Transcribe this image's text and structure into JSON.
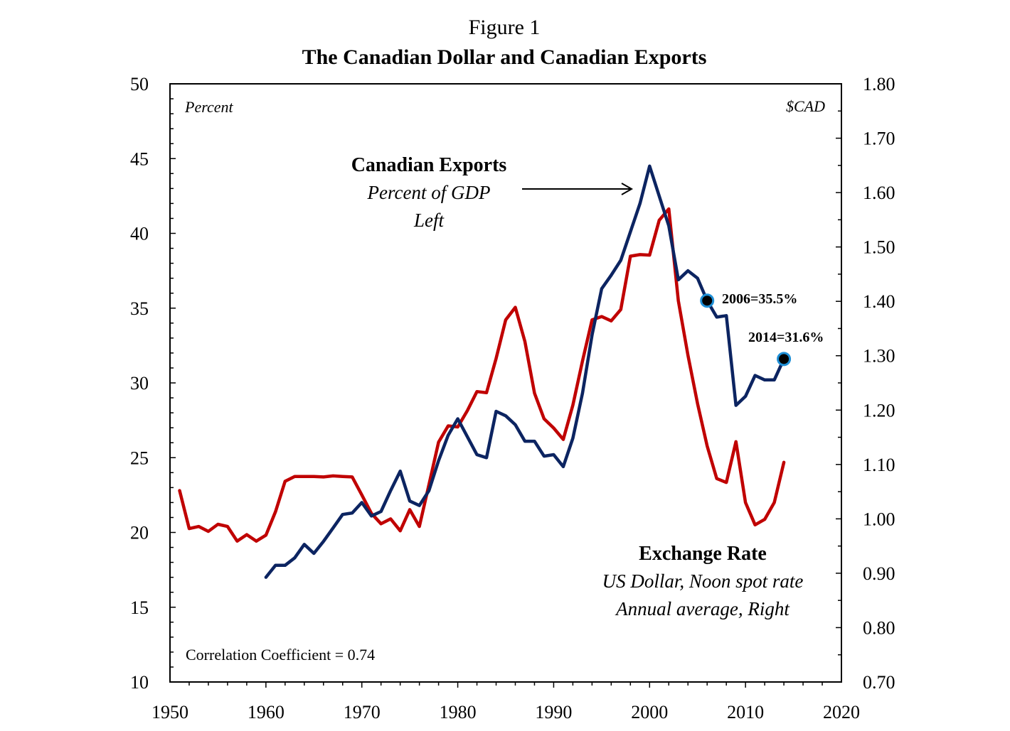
{
  "chart_data": {
    "type": "line",
    "figure_label": "Figure 1",
    "title": "The Canadian Dollar and Canadian Exports",
    "x_axis": {
      "range": [
        1950,
        2020
      ],
      "ticks": [
        1950,
        1960,
        1970,
        1980,
        1990,
        2000,
        2010,
        2020
      ],
      "tick_labels": [
        "1950",
        "1960",
        "1970",
        "1980",
        "1990",
        "2000",
        "2010",
        "2020"
      ]
    },
    "y_left": {
      "unit_label": "Percent",
      "range": [
        10,
        50
      ],
      "ticks": [
        10,
        15,
        20,
        25,
        30,
        35,
        40,
        45,
        50
      ],
      "tick_labels": [
        "10",
        "15",
        "20",
        "25",
        "30",
        "35",
        "40",
        "45",
        "50"
      ]
    },
    "y_right": {
      "unit_label": "$CAD",
      "range": [
        0.7,
        1.8
      ],
      "ticks": [
        0.7,
        0.8,
        0.9,
        1.0,
        1.1,
        1.2,
        1.3,
        1.4,
        1.5,
        1.6,
        1.7,
        1.8
      ],
      "tick_labels": [
        "0.70",
        "0.80",
        "0.90",
        "1.00",
        "1.10",
        "1.20",
        "1.30",
        "1.40",
        "1.50",
        "1.60",
        "1.70",
        "1.80"
      ]
    },
    "grid": false,
    "series": [
      {
        "name": "Canadian Exports",
        "axis": "left",
        "color": "#0c2461",
        "annotation": {
          "title": "Canadian Exports",
          "line1": "Percent of GDP",
          "line2": "Left"
        },
        "x": [
          1960,
          1961,
          1962,
          1963,
          1964,
          1965,
          1966,
          1967,
          1968,
          1969,
          1970,
          1971,
          1972,
          1973,
          1974,
          1975,
          1976,
          1977,
          1978,
          1979,
          1980,
          1981,
          1982,
          1983,
          1984,
          1985,
          1986,
          1987,
          1988,
          1989,
          1990,
          1991,
          1992,
          1993,
          1994,
          1995,
          1996,
          1997,
          1998,
          1999,
          2000,
          2001,
          2002,
          2003,
          2004,
          2005,
          2006,
          2007,
          2008,
          2009,
          2010,
          2011,
          2012,
          2013,
          2014
        ],
        "y": [
          17.0,
          17.8,
          17.8,
          18.3,
          19.2,
          18.6,
          19.4,
          20.3,
          21.2,
          21.3,
          22.0,
          21.1,
          21.4,
          22.8,
          24.1,
          22.1,
          21.8,
          22.8,
          24.8,
          26.5,
          27.6,
          26.4,
          25.2,
          25.0,
          28.1,
          27.8,
          27.2,
          26.1,
          26.1,
          25.1,
          25.2,
          24.4,
          26.3,
          29.3,
          33.2,
          36.3,
          37.2,
          38.2,
          40.1,
          42.0,
          44.5,
          42.5,
          40.5,
          36.9,
          37.5,
          37.0,
          35.5,
          34.4,
          34.5,
          28.5,
          29.1,
          30.5,
          30.2,
          30.2,
          31.6
        ]
      },
      {
        "name": "Exchange Rate",
        "axis": "right",
        "color": "#c00000",
        "annotation": {
          "title": "Exchange Rate",
          "line1": "US Dollar, Noon spot rate",
          "line2": "Annual average, Right"
        },
        "x": [
          1951,
          1952,
          1953,
          1954,
          1955,
          1956,
          1957,
          1958,
          1959,
          1960,
          1961,
          1962,
          1963,
          1964,
          1965,
          1966,
          1967,
          1968,
          1969,
          1970,
          1971,
          1972,
          1973,
          1974,
          1975,
          1976,
          1977,
          1978,
          1979,
          1980,
          1981,
          1982,
          1983,
          1984,
          1985,
          1986,
          1987,
          1988,
          1989,
          1990,
          1991,
          1992,
          1993,
          1994,
          1995,
          1996,
          1997,
          1998,
          1999,
          2000,
          2001,
          2002,
          2003,
          2004,
          2005,
          2006,
          2007,
          2008,
          2009,
          2010,
          2011,
          2012,
          2013,
          2014
        ],
        "y": [
          1.052,
          0.982,
          0.986,
          0.977,
          0.99,
          0.986,
          0.959,
          0.971,
          0.959,
          0.97,
          1.013,
          1.069,
          1.078,
          1.078,
          1.078,
          1.077,
          1.079,
          1.078,
          1.077,
          1.044,
          1.01,
          0.991,
          1.0,
          0.978,
          1.017,
          0.986,
          1.063,
          1.141,
          1.171,
          1.169,
          1.199,
          1.234,
          1.232,
          1.295,
          1.366,
          1.389,
          1.326,
          1.231,
          1.184,
          1.167,
          1.146,
          1.209,
          1.29,
          1.366,
          1.372,
          1.364,
          1.385,
          1.483,
          1.486,
          1.485,
          1.549,
          1.57,
          1.401,
          1.301,
          1.212,
          1.134,
          1.074,
          1.067,
          1.142,
          1.03,
          0.989,
          0.999,
          1.03,
          1.104
        ]
      }
    ],
    "highlighted_points": [
      {
        "series": "Canadian Exports",
        "x": 2006,
        "y": 35.5,
        "label": "2006=35.5%"
      },
      {
        "series": "Canadian Exports",
        "x": 2014,
        "y": 31.6,
        "label": "2014=31.6%"
      }
    ],
    "note": "Correlation Coefficient = 0.74"
  }
}
